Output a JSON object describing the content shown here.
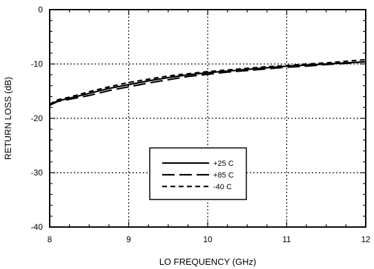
{
  "chart_data": {
    "type": "line",
    "title": "",
    "xlabel": "LO FREQUENCY (GHz)",
    "ylabel": "RETURN LOSS (dB)",
    "xlim": [
      8,
      12
    ],
    "ylim": [
      -40,
      0
    ],
    "xticks": [
      8,
      9,
      10,
      11,
      12
    ],
    "yticks": [
      0,
      -10,
      -20,
      -30,
      -40
    ],
    "xtick_labels": [
      "8",
      "9",
      "10",
      "11",
      "12"
    ],
    "ytick_labels": [
      "0",
      "-10",
      "-20",
      "-30",
      "-40"
    ],
    "grid": true,
    "legend_position": "center-bottom",
    "series": [
      {
        "name": "+25 C",
        "dash": "solid",
        "x": [
          8.0,
          8.1,
          8.25,
          8.5,
          8.75,
          9.0,
          9.25,
          9.5,
          9.75,
          10.0,
          10.25,
          10.5,
          10.75,
          11.0,
          11.25,
          11.5,
          11.75,
          12.0
        ],
        "y": [
          -17.5,
          -16.8,
          -16.3,
          -15.4,
          -14.5,
          -13.8,
          -13.1,
          -12.5,
          -12.0,
          -11.6,
          -11.3,
          -11.0,
          -10.7,
          -10.4,
          -10.2,
          -10.0,
          -9.8,
          -9.6
        ]
      },
      {
        "name": "+85 C",
        "dash": "long-dash",
        "x": [
          8.0,
          8.1,
          8.25,
          8.5,
          8.75,
          9.0,
          9.25,
          9.5,
          9.75,
          10.0,
          10.25,
          10.5,
          10.75,
          11.0,
          11.25,
          11.5,
          11.75,
          12.0
        ],
        "y": [
          -17.6,
          -16.9,
          -16.5,
          -15.8,
          -14.9,
          -14.2,
          -13.5,
          -12.9,
          -12.3,
          -11.9,
          -11.5,
          -11.2,
          -10.9,
          -10.6,
          -10.4,
          -10.1,
          -9.9,
          -9.6
        ]
      },
      {
        "name": "-40 C",
        "dash": "short-dash",
        "x": [
          8.0,
          8.1,
          8.25,
          8.5,
          8.75,
          9.0,
          9.25,
          9.5,
          9.75,
          10.0,
          10.25,
          10.5,
          10.75,
          11.0,
          11.25,
          11.5,
          11.75,
          12.0
        ],
        "y": [
          -17.4,
          -16.6,
          -16.1,
          -15.1,
          -14.2,
          -13.4,
          -12.8,
          -12.2,
          -11.8,
          -11.4,
          -11.1,
          -10.8,
          -10.5,
          -10.3,
          -10.0,
          -9.8,
          -9.5,
          -9.2
        ]
      }
    ]
  }
}
